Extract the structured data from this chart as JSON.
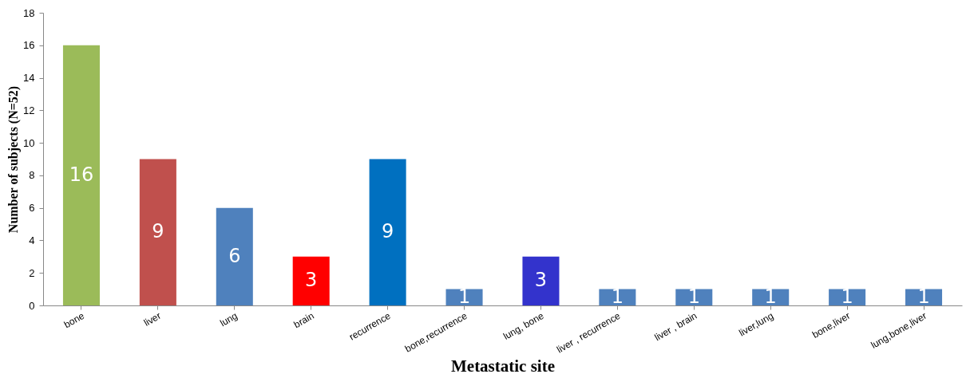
{
  "chart_data": {
    "type": "bar",
    "xlabel": "Metastatic site",
    "ylabel": "Number of subjects (N=52)",
    "categories": [
      "bone",
      "liver",
      "lung",
      "brain",
      "recurrence",
      "bone,recurrence",
      "lung, bone",
      "liver , recurrence",
      "liver , brain",
      "liver,lung",
      "bone,liver",
      "lung,bone,liver"
    ],
    "values": [
      16,
      9,
      6,
      3,
      9,
      1,
      3,
      1,
      1,
      1,
      1,
      1
    ],
    "colors": [
      "#9bbb59",
      "#c0504d",
      "#4f81bd",
      "#ff0000",
      "#0070c0",
      "#4f81bd",
      "#3333cc",
      "#4f81bd",
      "#4f81bd",
      "#4f81bd",
      "#4f81bd",
      "#4f81bd"
    ],
    "ylim": [
      0,
      18
    ],
    "yticks": [
      0,
      2,
      4,
      6,
      8,
      10,
      12,
      14,
      16,
      18
    ],
    "grid": false,
    "data_labels": true
  }
}
